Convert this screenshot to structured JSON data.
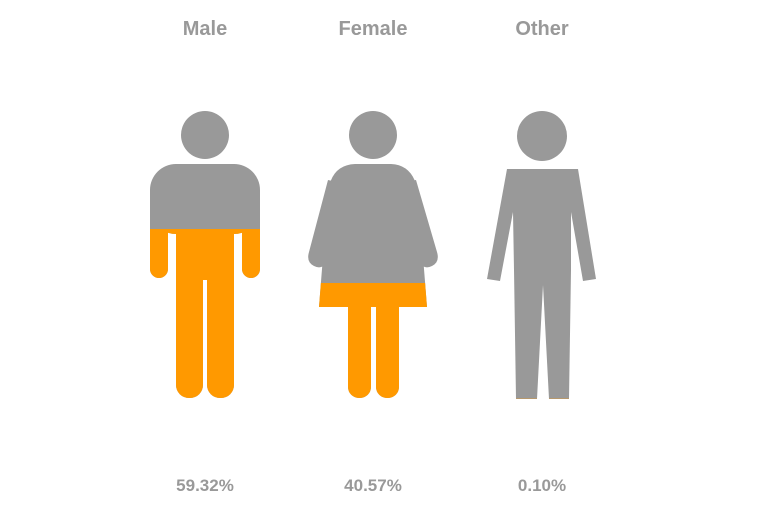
{
  "chart_data": {
    "type": "pictograph",
    "fill_color": "#FF9900",
    "base_color": "#999999",
    "text_color": "#999999",
    "categories": [
      "Male",
      "Female",
      "Other"
    ],
    "values": [
      59.32,
      40.57,
      0.1
    ],
    "value_labels": [
      "59.32%",
      "40.57%",
      "0.10%"
    ],
    "icons": [
      "male-figure-icon",
      "female-figure-icon",
      "person-figure-icon"
    ]
  }
}
